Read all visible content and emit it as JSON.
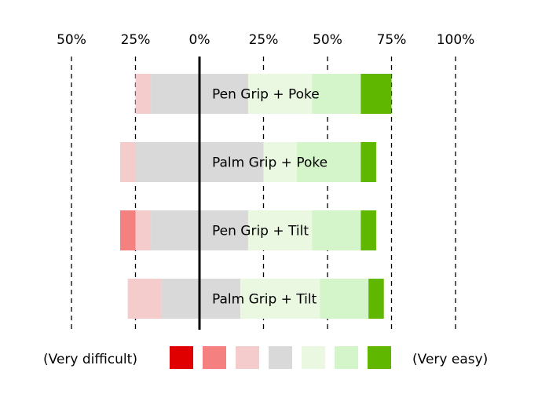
{
  "chart_data": {
    "type": "bar",
    "subtype": "diverging-stacked-likert",
    "orientation": "horizontal",
    "title": "",
    "xlabel": "",
    "ylabel": "",
    "x_ticks": [
      "50%",
      "25%",
      "0%",
      "25%",
      "50%",
      "75%",
      "100%"
    ],
    "x_tick_values": [
      -50,
      -25,
      0,
      25,
      50,
      75,
      100
    ],
    "xlim": [
      -50,
      100
    ],
    "grid": "vertical-dashed",
    "levels": 7,
    "level_colors": [
      "#e00000",
      "#f58080",
      "#f5cccc",
      "#d9d9d9",
      "#eaf7e1",
      "#d3f5c9",
      "#5fb700"
    ],
    "legend": {
      "placement": "bottom",
      "left_label": "(Very difficult)",
      "right_label": "(Very easy)"
    },
    "categories": [
      "Pen Grip + Poke",
      "Palm Grip + Poke",
      "Pen Grip + Tilt",
      "Palm Grip + Tilt"
    ],
    "segments": [
      [
        [
          -25,
          -19,
          2
        ],
        [
          -19,
          19,
          3
        ],
        [
          19,
          44,
          4
        ],
        [
          44,
          63,
          5
        ],
        [
          63,
          75,
          6
        ]
      ],
      [
        [
          -31,
          -25,
          2
        ],
        [
          -25,
          25,
          3
        ],
        [
          25,
          38,
          4
        ],
        [
          38,
          63,
          5
        ],
        [
          63,
          69,
          6
        ]
      ],
      [
        [
          -31,
          -25,
          1
        ],
        [
          -25,
          -19,
          2
        ],
        [
          -19,
          19,
          3
        ],
        [
          19,
          44,
          4
        ],
        [
          44,
          63,
          5
        ],
        [
          63,
          69,
          6
        ]
      ],
      [
        [
          -28,
          -15,
          2
        ],
        [
          -15,
          16,
          3
        ],
        [
          16,
          47,
          4
        ],
        [
          47,
          66,
          5
        ],
        [
          66,
          72,
          6
        ]
      ]
    ]
  }
}
